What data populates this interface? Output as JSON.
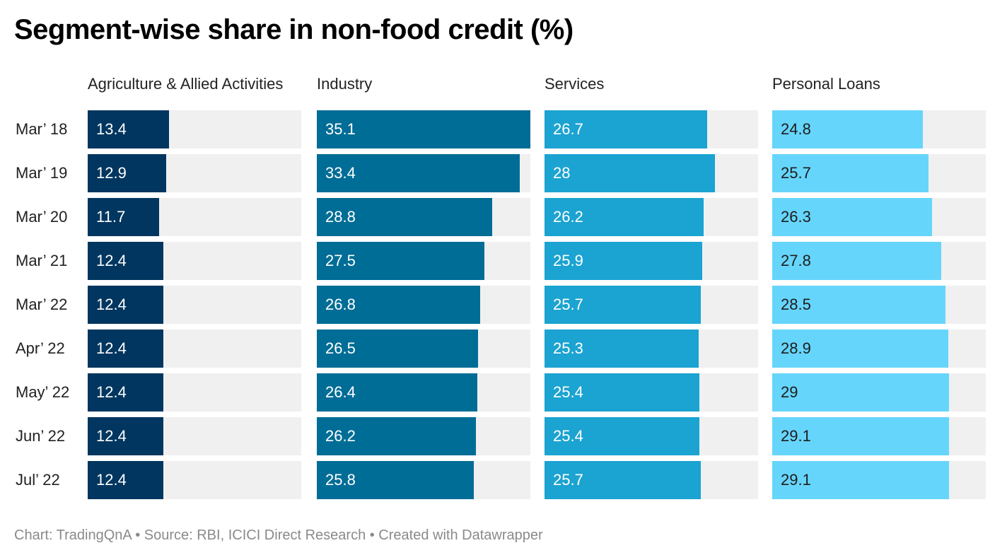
{
  "title": "Segment-wise share in non-food credit (%)",
  "footer": "Chart: TradingQnA • Source: RBI, ICICI Direct Research • Created with Datawrapper",
  "chart_data": {
    "type": "bar",
    "title": "Segment-wise share in non-food credit (%)",
    "categories": [
      "Mar’ 18",
      "Mar’ 19",
      "Mar’ 20",
      "Mar’ 21",
      "Mar’ 22",
      "Apr’ 22",
      "May’ 22",
      "Jun’ 22",
      "Jul’ 22"
    ],
    "xlim": [
      0,
      35.1
    ],
    "series": [
      {
        "name": "Agriculture & Allied Activities",
        "color": "#00365f",
        "text_color": "#ffffff",
        "values": [
          13.4,
          12.9,
          11.7,
          12.4,
          12.4,
          12.4,
          12.4,
          12.4,
          12.4
        ]
      },
      {
        "name": "Industry",
        "color": "#006d96",
        "text_color": "#ffffff",
        "values": [
          35.1,
          33.4,
          28.8,
          27.5,
          26.8,
          26.5,
          26.4,
          26.2,
          25.8
        ]
      },
      {
        "name": "Services",
        "color": "#1ba3d1",
        "text_color": "#ffffff",
        "values": [
          26.7,
          28,
          26.2,
          25.9,
          25.7,
          25.3,
          25.4,
          25.4,
          25.7
        ]
      },
      {
        "name": "Personal Loans",
        "color": "#66d5fb",
        "text_color": "#1d1d1d",
        "values": [
          24.8,
          25.7,
          26.3,
          27.8,
          28.5,
          28.9,
          29,
          29.1,
          29.1
        ]
      }
    ]
  }
}
